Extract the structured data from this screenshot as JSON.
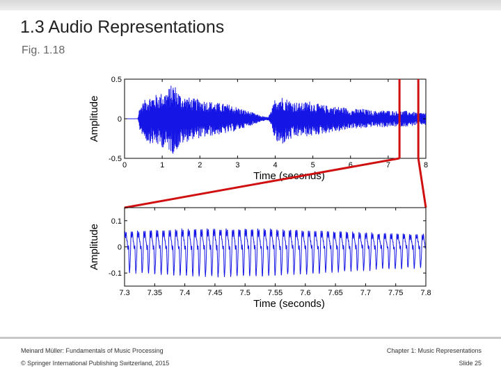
{
  "slide": {
    "title": "1.3 Audio Representations",
    "subtitle": "Fig. 1.18"
  },
  "footer": {
    "left_line1": "Meinard Müller: Fundamentals of Music Processing",
    "left_line2": "© Springer International Publishing Switzerland, 2015",
    "right_line1": "Chapter 1: Music Representations",
    "right_line2": "Slide 25"
  },
  "colors": {
    "waveform": "#1515e6",
    "zoom_marker": "#d01010",
    "axis": "#000000"
  },
  "chart_data": [
    {
      "type": "line",
      "xlabel": "Time (seconds)",
      "ylabel": "Amplitude",
      "xlim": [
        0,
        8
      ],
      "ylim": [
        -0.5,
        0.5
      ],
      "xticks": [
        0,
        1,
        2,
        3,
        4,
        5,
        6,
        7,
        8
      ],
      "yticks": [
        -0.5,
        0,
        0.5
      ],
      "xtick_labels": [
        "0",
        "1",
        "2",
        "3",
        "4",
        "5",
        "6",
        "7",
        "8"
      ],
      "ytick_labels": [
        "-0.5",
        "0",
        "0.5"
      ],
      "highlight_region": [
        7.3,
        7.8
      ],
      "envelope": {
        "x": [
          0,
          0.35,
          0.4,
          0.6,
          0.8,
          1.1,
          1.3,
          1.5,
          1.8,
          2.1,
          2.4,
          2.8,
          3.1,
          3.4,
          3.6,
          3.8,
          3.9,
          4.0,
          4.1,
          4.3,
          4.5,
          4.7,
          4.9,
          5.2,
          5.5,
          5.8,
          6.0,
          6.3,
          6.6,
          6.9,
          7.2,
          7.5,
          7.8,
          8.0
        ],
        "upper": [
          0,
          0,
          0.15,
          0.28,
          0.3,
          0.35,
          0.46,
          0.3,
          0.26,
          0.24,
          0.21,
          0.18,
          0.13,
          0.08,
          0.04,
          0.02,
          0.1,
          0.27,
          0.3,
          0.26,
          0.22,
          0.2,
          0.23,
          0.18,
          0.16,
          0.15,
          0.12,
          0.13,
          0.1,
          0.11,
          0.1,
          0.1,
          0.08,
          0.08
        ],
        "lower": [
          0,
          0,
          -0.15,
          -0.3,
          -0.33,
          -0.38,
          -0.45,
          -0.33,
          -0.26,
          -0.24,
          -0.21,
          -0.18,
          -0.13,
          -0.08,
          -0.04,
          -0.02,
          -0.1,
          -0.28,
          -0.35,
          -0.3,
          -0.25,
          -0.22,
          -0.23,
          -0.2,
          -0.17,
          -0.16,
          -0.12,
          -0.13,
          -0.1,
          -0.11,
          -0.1,
          -0.1,
          -0.08,
          -0.08
        ]
      }
    },
    {
      "type": "line",
      "xlabel": "Time (seconds)",
      "ylabel": "Amplitude",
      "xlim": [
        7.3,
        7.8
      ],
      "ylim": [
        -0.15,
        0.15
      ],
      "xticks": [
        7.3,
        7.35,
        7.4,
        7.45,
        7.5,
        7.55,
        7.6,
        7.65,
        7.7,
        7.75,
        7.8
      ],
      "yticks": [
        -0.1,
        0,
        0.1
      ],
      "xtick_labels": [
        "7.3",
        "7.35",
        "7.4",
        "7.45",
        "7.5",
        "7.55",
        "7.6",
        "7.65",
        "7.7",
        "7.75",
        "7.8"
      ],
      "ytick_labels": [
        "-0.1",
        "0",
        "0.1"
      ],
      "period_seconds": 0.0105,
      "amplitude": 0.11
    }
  ]
}
